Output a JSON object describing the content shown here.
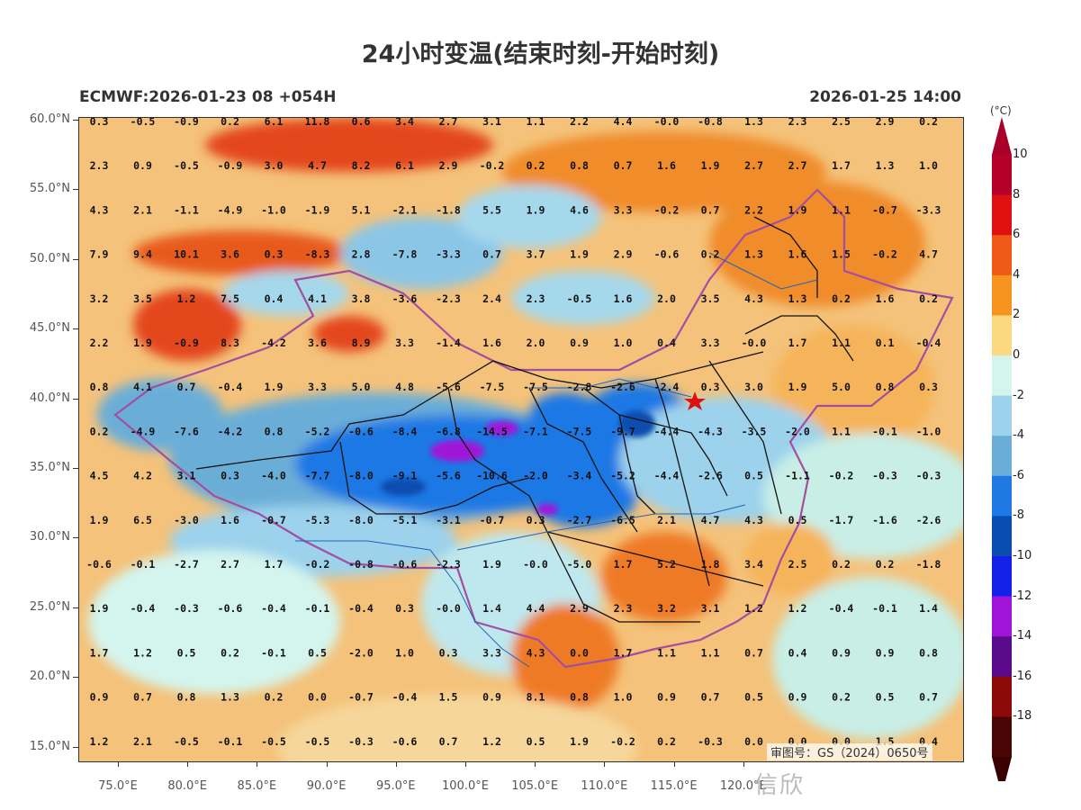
{
  "title": "24小时变温(结束时刻-开始时刻)",
  "model_run": "ECMWF:2026-01-23 08 +054H",
  "valid_time": "2026-01-25 14:00",
  "approval_number": "审图号：GS（2024）0650号",
  "colorbar": {
    "unit": "(°C)",
    "levels": [
      "10",
      "8",
      "6",
      "4",
      "2",
      "0",
      "-2",
      "-4",
      "-6",
      "-8",
      "-10",
      "-12",
      "-14",
      "-16",
      "-18"
    ],
    "colors": [
      "#b5002a",
      "#e01010",
      "#ef5a18",
      "#f79420",
      "#fcd980",
      "#d4f5ee",
      "#9cd2ec",
      "#6aaed8",
      "#1f78e4",
      "#0a4db0",
      "#1220e8",
      "#a014d8",
      "#5a0a8a",
      "#8c0a0a",
      "#4a0505"
    ],
    "top_color": "#a8002a",
    "bottom_color": "#3a0000"
  },
  "axes": {
    "lat_labels": [
      "60.0°N",
      "55.0°N",
      "50.0°N",
      "45.0°N",
      "40.0°N",
      "35.0°N",
      "30.0°N",
      "25.0°N",
      "20.0°N",
      "15.0°N"
    ],
    "lon_labels": [
      "75.0°E",
      "80.0°E",
      "85.0°E",
      "90.0°E",
      "95.0°E",
      "100.0°E",
      "105.0°E",
      "110.0°E",
      "115.0°E",
      "120.0°E"
    ]
  },
  "grid_values": [
    [
      "0.3",
      "-0.5",
      "-0.9",
      "0.2",
      "6.1",
      "11.8",
      "0.6",
      "3.4",
      "2.7",
      "3.1",
      "1.1",
      "2.2",
      "4.4",
      "-0.0",
      "-0.8",
      "1.3",
      "2.3",
      "2.5",
      "2.9",
      "0.2"
    ],
    [
      "2.3",
      "0.9",
      "-0.5",
      "-0.9",
      "3.0",
      "4.7",
      "8.2",
      "6.1",
      "2.9",
      "-0.2",
      "0.2",
      "0.8",
      "0.7",
      "1.6",
      "1.9",
      "2.7",
      "2.7",
      "1.7",
      "1.3",
      "1.0"
    ],
    [
      "4.3",
      "2.1",
      "-1.1",
      "-4.9",
      "-1.0",
      "-1.9",
      "5.1",
      "-2.1",
      "-1.8",
      "5.5",
      "1.9",
      "4.6",
      "3.3",
      "-0.2",
      "0.7",
      "2.2",
      "1.9",
      "1.1",
      "-0.7",
      "-3.3"
    ],
    [
      "7.9",
      "9.4",
      "10.1",
      "3.6",
      "0.3",
      "-8.3",
      "2.8",
      "-7.8",
      "-3.3",
      "0.7",
      "3.7",
      "1.9",
      "2.9",
      "-0.6",
      "0.2",
      "1.3",
      "1.6",
      "1.5",
      "-0.2",
      "4.7"
    ],
    [
      "3.2",
      "3.5",
      "1.2",
      "7.5",
      "0.4",
      "4.1",
      "3.8",
      "-3.6",
      "-2.3",
      "2.4",
      "2.3",
      "-0.5",
      "1.6",
      "2.0",
      "3.5",
      "4.3",
      "1.3",
      "0.2",
      "1.6",
      "0.2"
    ],
    [
      "2.2",
      "1.9",
      "-0.9",
      "8.3",
      "-4.2",
      "3.6",
      "8.9",
      "3.3",
      "-1.4",
      "1.6",
      "2.0",
      "0.9",
      "1.0",
      "0.4",
      "3.3",
      "-0.0",
      "1.7",
      "1.1",
      "0.1",
      "-0.4"
    ],
    [
      "0.8",
      "4.1",
      "0.7",
      "-0.4",
      "1.9",
      "3.3",
      "5.0",
      "4.8",
      "-5.6",
      "-7.5",
      "-7.5",
      "-2.8",
      "-2.6",
      "-2.4",
      "0.3",
      "3.0",
      "1.9",
      "5.0",
      "0.8",
      "0.3"
    ],
    [
      "0.2",
      "-4.9",
      "-7.6",
      "-4.2",
      "0.8",
      "-5.2",
      "-0.6",
      "-8.4",
      "-6.8",
      "-14.5",
      "-7.1",
      "-7.5",
      "-9.7",
      "-4.4",
      "-4.3",
      "-3.5",
      "-2.0",
      "1.1",
      "-0.1",
      "-1.0"
    ],
    [
      "4.5",
      "4.2",
      "3.1",
      "0.3",
      "-4.0",
      "-7.7",
      "-8.0",
      "-9.1",
      "-5.6",
      "-10.6",
      "-2.0",
      "-3.4",
      "-5.2",
      "-4.4",
      "-2.6",
      "0.5",
      "-1.1",
      "-0.2",
      "-0.3",
      "-0.3"
    ],
    [
      "1.9",
      "6.5",
      "-3.0",
      "1.6",
      "-0.7",
      "-5.3",
      "-8.0",
      "-5.1",
      "-3.1",
      "-0.7",
      "0.3",
      "-2.7",
      "-6.5",
      "2.1",
      "4.7",
      "4.3",
      "0.5",
      "-1.7",
      "-1.6",
      "-2.6"
    ],
    [
      "-0.6",
      "-0.1",
      "-2.7",
      "2.7",
      "1.7",
      "-0.2",
      "-0.8",
      "-0.6",
      "-2.3",
      "1.9",
      "-0.0",
      "-5.0",
      "1.7",
      "5.2",
      "1.8",
      "3.4",
      "2.5",
      "0.2",
      "0.2",
      "-1.8"
    ],
    [
      "1.9",
      "-0.4",
      "-0.3",
      "-0.6",
      "-0.4",
      "-0.1",
      "-0.4",
      "0.3",
      "-0.0",
      "1.4",
      "4.4",
      "2.9",
      "2.3",
      "3.2",
      "3.1",
      "1.2",
      "1.2",
      "-0.4",
      "-0.1",
      "1.4"
    ],
    [
      "1.7",
      "1.2",
      "0.5",
      "0.2",
      "-0.1",
      "0.5",
      "-2.0",
      "1.0",
      "0.3",
      "3.3",
      "4.3",
      "0.0",
      "1.7",
      "1.1",
      "1.1",
      "0.7",
      "0.4",
      "0.9",
      "0.9",
      "0.8"
    ],
    [
      "0.9",
      "0.7",
      "0.8",
      "1.3",
      "0.2",
      "0.0",
      "-0.7",
      "-0.4",
      "1.5",
      "0.9",
      "8.1",
      "0.8",
      "1.0",
      "0.9",
      "0.7",
      "0.5",
      "0.9",
      "0.2",
      "0.5",
      "0.7"
    ],
    [
      "1.2",
      "2.1",
      "-0.5",
      "-0.1",
      "-0.5",
      "-0.5",
      "-0.3",
      "-0.6",
      "0.7",
      "1.2",
      "0.5",
      "1.9",
      "-0.2",
      "0.2",
      "-0.3",
      "0.0",
      "0.0",
      "0.0",
      "1.5",
      "0.4"
    ]
  ],
  "colors": {
    "ocean": "#9fd6ec",
    "land_warm": "#f7c97a",
    "border_purple": "#a34ea0",
    "province_black": "#111111",
    "river_blue": "#1f64b8",
    "capital_star": "#e01010"
  },
  "watermark": "信欣"
}
